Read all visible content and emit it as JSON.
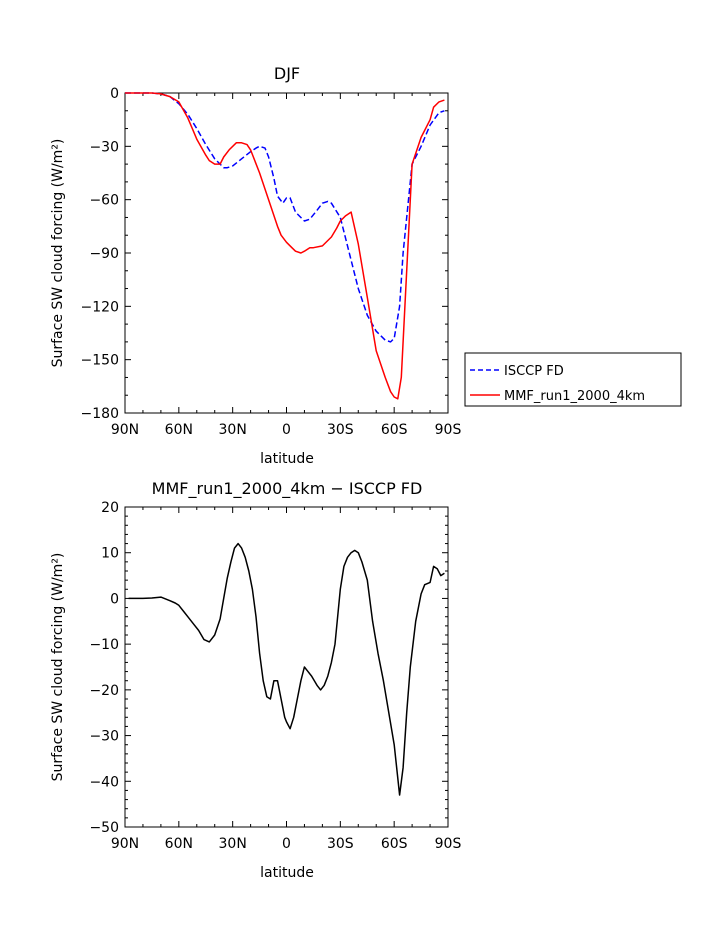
{
  "chart_data": [
    {
      "type": "line",
      "title": "DJF",
      "xlabel": "latitude",
      "ylabel": "Surface SW cloud forcing (W/m²)",
      "xlim": [
        90,
        -90
      ],
      "ylim": [
        -180,
        0
      ],
      "xticks": [
        90,
        60,
        30,
        0,
        -30,
        -60,
        -90
      ],
      "xtick_labels": [
        "90N",
        "60N",
        "30N",
        "0",
        "30S",
        "60S",
        "90S"
      ],
      "yticks": [
        0,
        -30,
        -60,
        -90,
        -120,
        -150,
        -180
      ],
      "ytick_labels": [
        "0",
        "−30",
        "−60",
        "−90",
        "−120",
        "−150",
        "−180"
      ],
      "grid": false,
      "legend_position": "right",
      "series": [
        {
          "name": "ISCCP FD",
          "color": "#0000ff",
          "dash": "dashed",
          "x": [
            90,
            85,
            80,
            75,
            70,
            65,
            60,
            55,
            50,
            45,
            40,
            37,
            35,
            33,
            30,
            25,
            20,
            17,
            15,
            12,
            10,
            7,
            5,
            2,
            0,
            -2,
            -5,
            -10,
            -13,
            -17,
            -20,
            -23,
            -25,
            -30,
            -35,
            -40,
            -45,
            -50,
            -55,
            -58,
            -60,
            -63,
            -65,
            -70,
            -75,
            -80,
            -85,
            -88
          ],
          "y": [
            0,
            0,
            0,
            0,
            -0.5,
            -2,
            -6,
            -12,
            -20,
            -29,
            -37,
            -40,
            -42,
            -42,
            -41,
            -37,
            -33,
            -31,
            -30,
            -31,
            -36,
            -48,
            -58,
            -62,
            -59,
            -59,
            -67,
            -72,
            -71,
            -66,
            -62,
            -61,
            -62,
            -70,
            -90,
            -110,
            -125,
            -134,
            -139,
            -140,
            -138,
            -120,
            -90,
            -40,
            -30,
            -18,
            -11,
            -10
          ]
        },
        {
          "name": "MMF_run1_2000_4km",
          "color": "#ff0000",
          "dash": "solid",
          "x": [
            90,
            85,
            80,
            75,
            70,
            65,
            60,
            55,
            50,
            45,
            43,
            40,
            37,
            35,
            32,
            28,
            25,
            22,
            20,
            15,
            10,
            5,
            3,
            0,
            -3,
            -5,
            -8,
            -10,
            -13,
            -15,
            -20,
            -25,
            -28,
            -30,
            -33,
            -36,
            -40,
            -45,
            -50,
            -55,
            -58,
            -60,
            -62,
            -64,
            -66,
            -70,
            -75,
            -80,
            -82,
            -85,
            -88
          ],
          "y": [
            0,
            0,
            0,
            0,
            -0.5,
            -2,
            -5,
            -14,
            -26,
            -35,
            -38,
            -40,
            -40,
            -36,
            -32,
            -28,
            -28,
            -29,
            -32,
            -45,
            -60,
            -75,
            -80,
            -84,
            -87,
            -89,
            -90,
            -89,
            -87,
            -87,
            -86,
            -81,
            -76,
            -72,
            -69,
            -67,
            -85,
            -115,
            -145,
            -160,
            -168,
            -171,
            -172,
            -160,
            -120,
            -40,
            -25,
            -15,
            -8,
            -5,
            -4
          ]
        }
      ]
    },
    {
      "type": "line",
      "title": "MMF_run1_2000_4km − ISCCP FD",
      "xlabel": "latitude",
      "ylabel": "Surface SW cloud forcing (W/m²)",
      "xlim": [
        90,
        -90
      ],
      "ylim": [
        -50,
        20
      ],
      "xticks": [
        90,
        60,
        30,
        0,
        -30,
        -60,
        -90
      ],
      "xtick_labels": [
        "90N",
        "60N",
        "30N",
        "0",
        "30S",
        "60S",
        "90S"
      ],
      "yticks": [
        20,
        10,
        0,
        -10,
        -20,
        -30,
        -40,
        -50
      ],
      "ytick_labels": [
        "20",
        "10",
        "0",
        "−10",
        "−20",
        "−30",
        "−40",
        "−50"
      ],
      "grid": false,
      "series": [
        {
          "color": "#000000",
          "dash": "solid",
          "x": [
            88,
            80,
            75,
            70,
            65,
            62,
            60,
            57,
            55,
            52,
            49,
            46,
            43,
            40,
            37,
            35,
            33,
            31,
            29,
            27,
            25,
            23,
            21,
            19,
            17,
            15,
            13,
            11,
            9,
            7,
            5,
            3,
            1,
            0,
            -2,
            -4,
            -6,
            -8,
            -10,
            -12,
            -14,
            -17,
            -19,
            -21,
            -23,
            -25,
            -27,
            -30,
            -32,
            -34,
            -36,
            -38,
            -40,
            -42,
            -45,
            -48,
            -51,
            -54,
            -57,
            -60,
            -63,
            -65,
            -67,
            -69,
            -72,
            -75,
            -77,
            -80,
            -82,
            -84,
            -86,
            -88
          ],
          "y": [
            0,
            0,
            0.1,
            0.3,
            -0.5,
            -1,
            -1.5,
            -3,
            -4,
            -5.5,
            -7,
            -9,
            -9.5,
            -8,
            -4.5,
            0,
            4.5,
            8,
            11,
            12,
            11,
            9,
            6,
            2,
            -4,
            -12,
            -18,
            -21.5,
            -22,
            -18,
            -18,
            -22,
            -26,
            -27,
            -28.5,
            -26,
            -22,
            -18,
            -15,
            -16,
            -17,
            -19,
            -20,
            -19,
            -17,
            -14,
            -10,
            2,
            7,
            9,
            10,
            10.5,
            10,
            8,
            4,
            -5,
            -12,
            -18,
            -25,
            -32,
            -43,
            -37,
            -25,
            -15,
            -5,
            1,
            3,
            3.5,
            7,
            6.5,
            5,
            5.5
          ]
        }
      ]
    }
  ],
  "legend": {
    "entries": [
      "ISCCP FD",
      "MMF_run1_2000_4km"
    ]
  }
}
